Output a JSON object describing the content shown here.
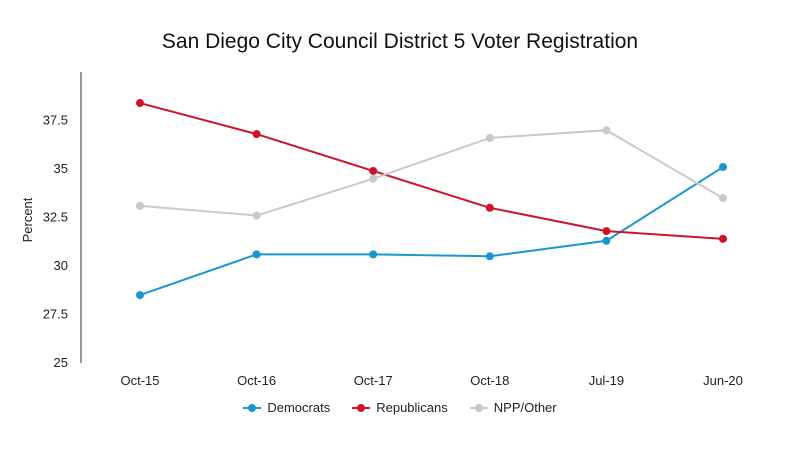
{
  "chart_data": {
    "type": "line",
    "title": "San Diego City Council District 5 Voter Registration",
    "xlabel": "",
    "ylabel": "Percent",
    "x": [
      "Oct-15",
      "Oct-16",
      "Oct-17",
      "Oct-18",
      "Jul-19",
      "Jun-20"
    ],
    "ylim": [
      25,
      40
    ],
    "yticks": [
      25,
      27.5,
      30,
      32.5,
      35,
      37.5
    ],
    "ytick_labels": [
      "25",
      "27.5",
      "30",
      "32.5",
      "35",
      "37.5"
    ],
    "grid": false,
    "legend_position": "bottom",
    "series": [
      {
        "name": "Democrats",
        "color": "#1a96cf",
        "values": [
          28.5,
          30.6,
          30.6,
          30.5,
          31.3,
          35.1
        ]
      },
      {
        "name": "Republicans",
        "color": "#cf1229",
        "values": [
          38.4,
          36.8,
          34.9,
          33.0,
          31.8,
          31.4
        ]
      },
      {
        "name": "NPP/Other",
        "color": "#c9c9c9",
        "values": [
          33.1,
          32.6,
          34.5,
          36.6,
          37.0,
          33.5
        ]
      }
    ]
  }
}
